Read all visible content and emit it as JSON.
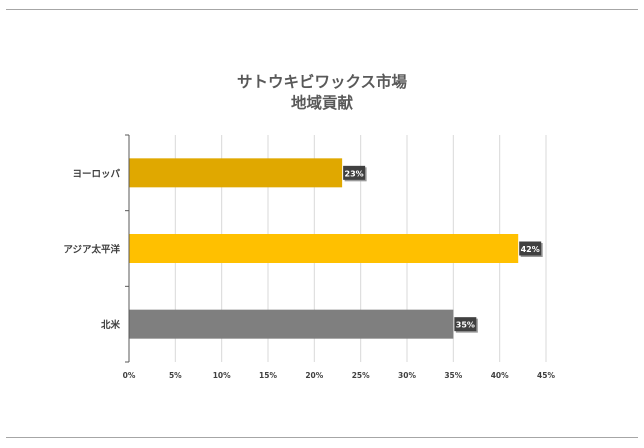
{
  "chart_data": {
    "type": "bar",
    "orientation": "horizontal",
    "title_line1": "サトウキビワックス市場",
    "title_line2": "地域貢献",
    "categories": [
      "ヨーロッパ",
      "アジア太平洋",
      "北米"
    ],
    "values": [
      23,
      42,
      35
    ],
    "data_labels": [
      "23%",
      "42%",
      "35%"
    ],
    "bar_colors": [
      "#e0a800",
      "#ffc000",
      "#7f7f7f"
    ],
    "xlim": [
      0,
      45
    ],
    "xticks": [
      0,
      5,
      10,
      15,
      20,
      25,
      30,
      35,
      40,
      45
    ],
    "xtick_labels": [
      "0%",
      "5%",
      "10%",
      "15%",
      "20%",
      "25%",
      "30%",
      "35%",
      "40%",
      "45%"
    ],
    "grid": true,
    "legend": "none"
  }
}
